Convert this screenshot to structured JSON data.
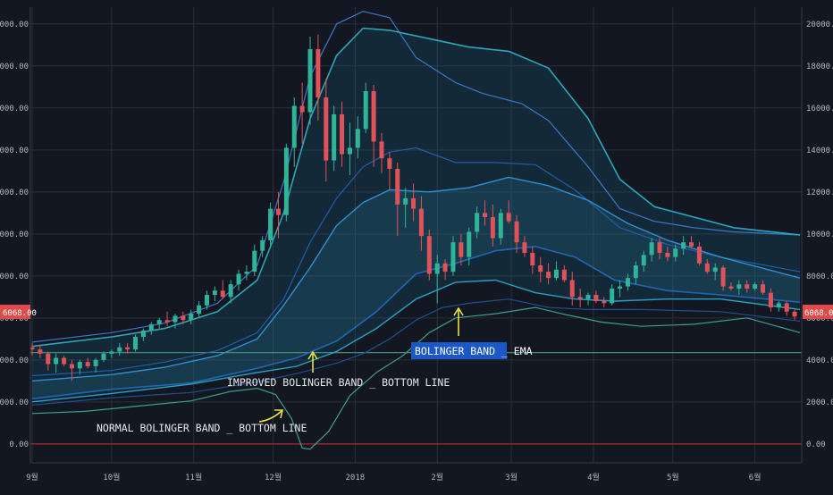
{
  "chart_data": {
    "type": "candlestick",
    "instrument_price_label": "6068.00",
    "ylim": [
      -900,
      20800
    ],
    "yticks": [
      "0.00",
      "2000.00",
      "4000.00",
      "6000.00",
      "8000.00",
      "10000.00",
      "12000.00",
      "14000.00",
      "16000.00",
      "18000.00",
      "20000.00"
    ],
    "x_ticks": [
      "9월",
      "10월",
      "11월",
      "12월",
      "2018",
      "2월",
      "3월",
      "4월",
      "5월",
      "6월"
    ],
    "current_price": 6068,
    "horizontal_levels": [
      {
        "value": 4350,
        "color": "#3f8a78"
      },
      {
        "value": 0,
        "color": "#b0262f"
      }
    ],
    "annotations": [
      {
        "text": "BOLINGER BAND _ EMA",
        "highlight": true
      },
      {
        "text": "IMPROVED BOLINGER BAND _ BOTTOM LINE",
        "highlight": false
      },
      {
        "text": "NORMAL BOLINGER BAND _ BOTTOM LINE",
        "highlight": false
      }
    ],
    "x_days": {
      "start": 0,
      "end": 290,
      "ticks": [
        0,
        30,
        61,
        91,
        122,
        153,
        181,
        212,
        242,
        273
      ]
    },
    "candles": [
      [
        0,
        4600,
        4800,
        4200,
        4500
      ],
      [
        3,
        4500,
        4700,
        4100,
        4300
      ],
      [
        6,
        4300,
        4400,
        3500,
        3800
      ],
      [
        9,
        3800,
        4300,
        3400,
        4100
      ],
      [
        12,
        4100,
        4200,
        3700,
        3800
      ],
      [
        15,
        3800,
        4000,
        3000,
        3600
      ],
      [
        18,
        3600,
        4000,
        3300,
        3900
      ],
      [
        21,
        3900,
        4100,
        3600,
        3700
      ],
      [
        24,
        3700,
        4100,
        3400,
        4000
      ],
      [
        27,
        4000,
        4400,
        3900,
        4300
      ],
      [
        30,
        4300,
        4500,
        4100,
        4400
      ],
      [
        33,
        4400,
        4800,
        4200,
        4600
      ],
      [
        36,
        4600,
        4800,
        4300,
        4500
      ],
      [
        39,
        4500,
        5200,
        4400,
        5100
      ],
      [
        42,
        5100,
        5500,
        4900,
        5400
      ],
      [
        45,
        5400,
        5800,
        5200,
        5700
      ],
      [
        48,
        5700,
        6000,
        5500,
        5900
      ],
      [
        51,
        5900,
        6300,
        5600,
        5800
      ],
      [
        54,
        5800,
        6200,
        5500,
        6100
      ],
      [
        57,
        6100,
        6300,
        5700,
        5900
      ],
      [
        60,
        5900,
        6400,
        5700,
        6200
      ],
      [
        63,
        6200,
        6800,
        6000,
        6600
      ],
      [
        66,
        6600,
        7300,
        6400,
        7100
      ],
      [
        69,
        7100,
        7500,
        6800,
        7300
      ],
      [
        72,
        7300,
        7800,
        6900,
        7000
      ],
      [
        75,
        7000,
        7800,
        6700,
        7600
      ],
      [
        78,
        7600,
        8300,
        7300,
        8100
      ],
      [
        81,
        8100,
        8500,
        7800,
        8200
      ],
      [
        84,
        8200,
        9500,
        8000,
        9200
      ],
      [
        87,
        9200,
        9900,
        8900,
        9700
      ],
      [
        90,
        9700,
        11500,
        9400,
        11200
      ],
      [
        93,
        11200,
        12000,
        9800,
        10900
      ],
      [
        96,
        10900,
        14300,
        10600,
        14100
      ],
      [
        99,
        14100,
        16500,
        13200,
        16100
      ],
      [
        102,
        16100,
        17200,
        14300,
        15800
      ],
      [
        105,
        15800,
        19400,
        15200,
        18800
      ],
      [
        108,
        18800,
        19500,
        15400,
        16500
      ],
      [
        111,
        16500,
        17400,
        12500,
        13500
      ],
      [
        114,
        13500,
        16100,
        13000,
        15700
      ],
      [
        117,
        15700,
        16300,
        13200,
        13800
      ],
      [
        120,
        13800,
        15300,
        12800,
        14100
      ],
      [
        123,
        14100,
        15600,
        13600,
        15000
      ],
      [
        126,
        15000,
        17200,
        14800,
        16800
      ],
      [
        129,
        16800,
        17100,
        13200,
        14400
      ],
      [
        132,
        14400,
        14800,
        12900,
        13600
      ],
      [
        135,
        13600,
        13900,
        12100,
        13100
      ],
      [
        138,
        13100,
        13400,
        9900,
        11400
      ],
      [
        141,
        11400,
        12200,
        10300,
        11700
      ],
      [
        144,
        11700,
        12400,
        10600,
        11200
      ],
      [
        147,
        11200,
        11800,
        9200,
        9900
      ],
      [
        150,
        9900,
        10200,
        7800,
        8100
      ],
      [
        153,
        8100,
        9000,
        6700,
        8600
      ],
      [
        156,
        8600,
        8800,
        7800,
        8200
      ],
      [
        159,
        8200,
        9900,
        8000,
        9600
      ],
      [
        162,
        9600,
        10000,
        8500,
        8900
      ],
      [
        165,
        8900,
        10300,
        8500,
        10100
      ],
      [
        168,
        10100,
        11300,
        9800,
        11000
      ],
      [
        171,
        11000,
        11600,
        10400,
        10800
      ],
      [
        174,
        10800,
        11400,
        9400,
        9800
      ],
      [
        177,
        9800,
        11200,
        9500,
        11000
      ],
      [
        180,
        11000,
        11600,
        10500,
        10600
      ],
      [
        183,
        10600,
        10900,
        9100,
        9600
      ],
      [
        186,
        9600,
        9900,
        8900,
        9100
      ],
      [
        189,
        9100,
        9400,
        8100,
        8500
      ],
      [
        192,
        8500,
        8900,
        7700,
        8200
      ],
      [
        195,
        8200,
        8600,
        7600,
        7900
      ],
      [
        198,
        7900,
        8700,
        7800,
        8300
      ],
      [
        201,
        8300,
        8500,
        7700,
        7800
      ],
      [
        204,
        7800,
        8200,
        6600,
        7000
      ],
      [
        207,
        7000,
        7400,
        6500,
        6900
      ],
      [
        210,
        6900,
        7200,
        6600,
        7100
      ],
      [
        213,
        7100,
        7300,
        6700,
        6800
      ],
      [
        216,
        6800,
        7000,
        6500,
        6700
      ],
      [
        219,
        6700,
        7600,
        6600,
        7400
      ],
      [
        222,
        7400,
        7800,
        7000,
        7500
      ],
      [
        225,
        7500,
        8100,
        7300,
        7900
      ],
      [
        228,
        7900,
        8700,
        7600,
        8500
      ],
      [
        231,
        8500,
        9200,
        8200,
        9000
      ],
      [
        234,
        9000,
        9800,
        8700,
        9600
      ],
      [
        237,
        9600,
        9800,
        8800,
        9100
      ],
      [
        240,
        9100,
        9400,
        8700,
        8900
      ],
      [
        243,
        8900,
        9500,
        8700,
        9300
      ],
      [
        246,
        9300,
        9900,
        9000,
        9600
      ],
      [
        249,
        9600,
        9900,
        9300,
        9400
      ],
      [
        252,
        9400,
        9600,
        8500,
        8600
      ],
      [
        255,
        8600,
        8800,
        8100,
        8200
      ],
      [
        258,
        8200,
        8600,
        7800,
        8400
      ],
      [
        261,
        8400,
        8500,
        7300,
        7500
      ],
      [
        264,
        7500,
        7700,
        7300,
        7400
      ],
      [
        267,
        7400,
        7800,
        7100,
        7600
      ],
      [
        270,
        7600,
        7800,
        7200,
        7400
      ],
      [
        273,
        7400,
        7700,
        7300,
        7600
      ],
      [
        276,
        7600,
        7800,
        7100,
        7200
      ],
      [
        279,
        7200,
        7400,
        6300,
        6500
      ],
      [
        282,
        6500,
        6800,
        6300,
        6700
      ],
      [
        285,
        6700,
        6800,
        6100,
        6300
      ],
      [
        288,
        6300,
        6400,
        5900,
        6068
      ]
    ],
    "series": [
      {
        "color": "#3a78c9",
        "width": 1.2,
        "points": [
          [
            0,
            4850
          ],
          [
            30,
            5300
          ],
          [
            50,
            5750
          ],
          [
            70,
            6700
          ],
          [
            85,
            8500
          ],
          [
            95,
            12500
          ],
          [
            105,
            17500
          ],
          [
            115,
            20000
          ],
          [
            125,
            20600
          ],
          [
            135,
            20300
          ],
          [
            145,
            18400
          ],
          [
            160,
            17200
          ],
          [
            170,
            16700
          ],
          [
            185,
            16200
          ],
          [
            195,
            15400
          ],
          [
            210,
            13200
          ],
          [
            222,
            11200
          ],
          [
            235,
            10600
          ],
          [
            250,
            10300
          ],
          [
            265,
            10100
          ],
          [
            290,
            9950
          ]
        ]
      },
      {
        "color": "#2aa7b8",
        "width": 1.6,
        "points": [
          [
            0,
            4650
          ],
          [
            30,
            5100
          ],
          [
            50,
            5500
          ],
          [
            70,
            6300
          ],
          [
            85,
            7800
          ],
          [
            95,
            11000
          ],
          [
            105,
            15500
          ],
          [
            115,
            18500
          ],
          [
            125,
            19800
          ],
          [
            135,
            19700
          ],
          [
            150,
            19300
          ],
          [
            165,
            18900
          ],
          [
            180,
            18700
          ],
          [
            195,
            17900
          ],
          [
            210,
            15500
          ],
          [
            222,
            12600
          ],
          [
            235,
            11300
          ],
          [
            250,
            10800
          ],
          [
            265,
            10300
          ],
          [
            290,
            9950
          ]
        ]
      },
      {
        "color": "#1f5fa8",
        "width": 1.2,
        "points": [
          [
            0,
            3250
          ],
          [
            30,
            3500
          ],
          [
            50,
            3900
          ],
          [
            70,
            4450
          ],
          [
            85,
            5300
          ],
          [
            95,
            6900
          ],
          [
            105,
            9600
          ],
          [
            115,
            11700
          ],
          [
            125,
            13200
          ],
          [
            135,
            13900
          ],
          [
            145,
            14100
          ],
          [
            160,
            13400
          ],
          [
            175,
            13400
          ],
          [
            190,
            13300
          ],
          [
            205,
            12100
          ],
          [
            222,
            10300
          ],
          [
            240,
            9500
          ],
          [
            260,
            8900
          ],
          [
            290,
            8200
          ]
        ]
      },
      {
        "color": "#2f8ed0",
        "width": 1.4,
        "points": [
          [
            0,
            3000
          ],
          [
            30,
            3300
          ],
          [
            50,
            3650
          ],
          [
            70,
            4200
          ],
          [
            85,
            5000
          ],
          [
            95,
            6600
          ],
          [
            105,
            8400
          ],
          [
            115,
            10400
          ],
          [
            125,
            11500
          ],
          [
            135,
            12100
          ],
          [
            150,
            12000
          ],
          [
            165,
            12200
          ],
          [
            180,
            12700
          ],
          [
            195,
            12300
          ],
          [
            210,
            11600
          ],
          [
            225,
            10500
          ],
          [
            240,
            9700
          ],
          [
            260,
            8900
          ],
          [
            290,
            7900
          ]
        ]
      },
      {
        "color": "#1f67b5",
        "width": 1.6,
        "points": [
          [
            0,
            2150
          ],
          [
            30,
            2600
          ],
          [
            60,
            2900
          ],
          [
            85,
            3600
          ],
          [
            100,
            4100
          ],
          [
            115,
            4900
          ],
          [
            130,
            6300
          ],
          [
            145,
            8100
          ],
          [
            160,
            8600
          ],
          [
            175,
            9200
          ],
          [
            190,
            9400
          ],
          [
            205,
            8900
          ],
          [
            220,
            7800
          ],
          [
            240,
            7300
          ],
          [
            260,
            7100
          ],
          [
            290,
            6750
          ]
        ]
      },
      {
        "color": "#2a9fc4",
        "width": 1.4,
        "points": [
          [
            0,
            2000
          ],
          [
            30,
            2400
          ],
          [
            60,
            2850
          ],
          [
            85,
            3400
          ],
          [
            100,
            3700
          ],
          [
            115,
            4400
          ],
          [
            130,
            5500
          ],
          [
            145,
            6900
          ],
          [
            160,
            7700
          ],
          [
            175,
            7800
          ],
          [
            190,
            7200
          ],
          [
            205,
            6900
          ],
          [
            220,
            6800
          ],
          [
            240,
            6900
          ],
          [
            260,
            6900
          ],
          [
            290,
            6400
          ]
        ]
      },
      {
        "color": "#1f4f8c",
        "width": 1.2,
        "points": [
          [
            0,
            1850
          ],
          [
            30,
            2200
          ],
          [
            60,
            2450
          ],
          [
            85,
            2950
          ],
          [
            100,
            3350
          ],
          [
            115,
            3850
          ],
          [
            125,
            4300
          ],
          [
            135,
            5000
          ],
          [
            145,
            5900
          ],
          [
            155,
            6500
          ],
          [
            165,
            6700
          ],
          [
            180,
            6900
          ],
          [
            195,
            6500
          ],
          [
            210,
            6400
          ],
          [
            230,
            6400
          ],
          [
            260,
            6300
          ],
          [
            290,
            5850
          ]
        ]
      },
      {
        "color": "#3d9f87",
        "width": 1.2,
        "points": [
          [
            0,
            1450
          ],
          [
            20,
            1550
          ],
          [
            40,
            1800
          ],
          [
            60,
            2050
          ],
          [
            75,
            2500
          ],
          [
            85,
            2650
          ],
          [
            92,
            2350
          ],
          [
            98,
            1200
          ],
          [
            102,
            -200
          ],
          [
            105,
            -250
          ],
          [
            112,
            600
          ],
          [
            120,
            2300
          ],
          [
            130,
            3400
          ],
          [
            140,
            4200
          ],
          [
            150,
            5300
          ],
          [
            160,
            6000
          ],
          [
            175,
            6200
          ],
          [
            190,
            6500
          ],
          [
            200,
            6200
          ],
          [
            215,
            5800
          ],
          [
            230,
            5600
          ],
          [
            250,
            5700
          ],
          [
            270,
            6000
          ],
          [
            290,
            5300
          ]
        ]
      }
    ]
  }
}
